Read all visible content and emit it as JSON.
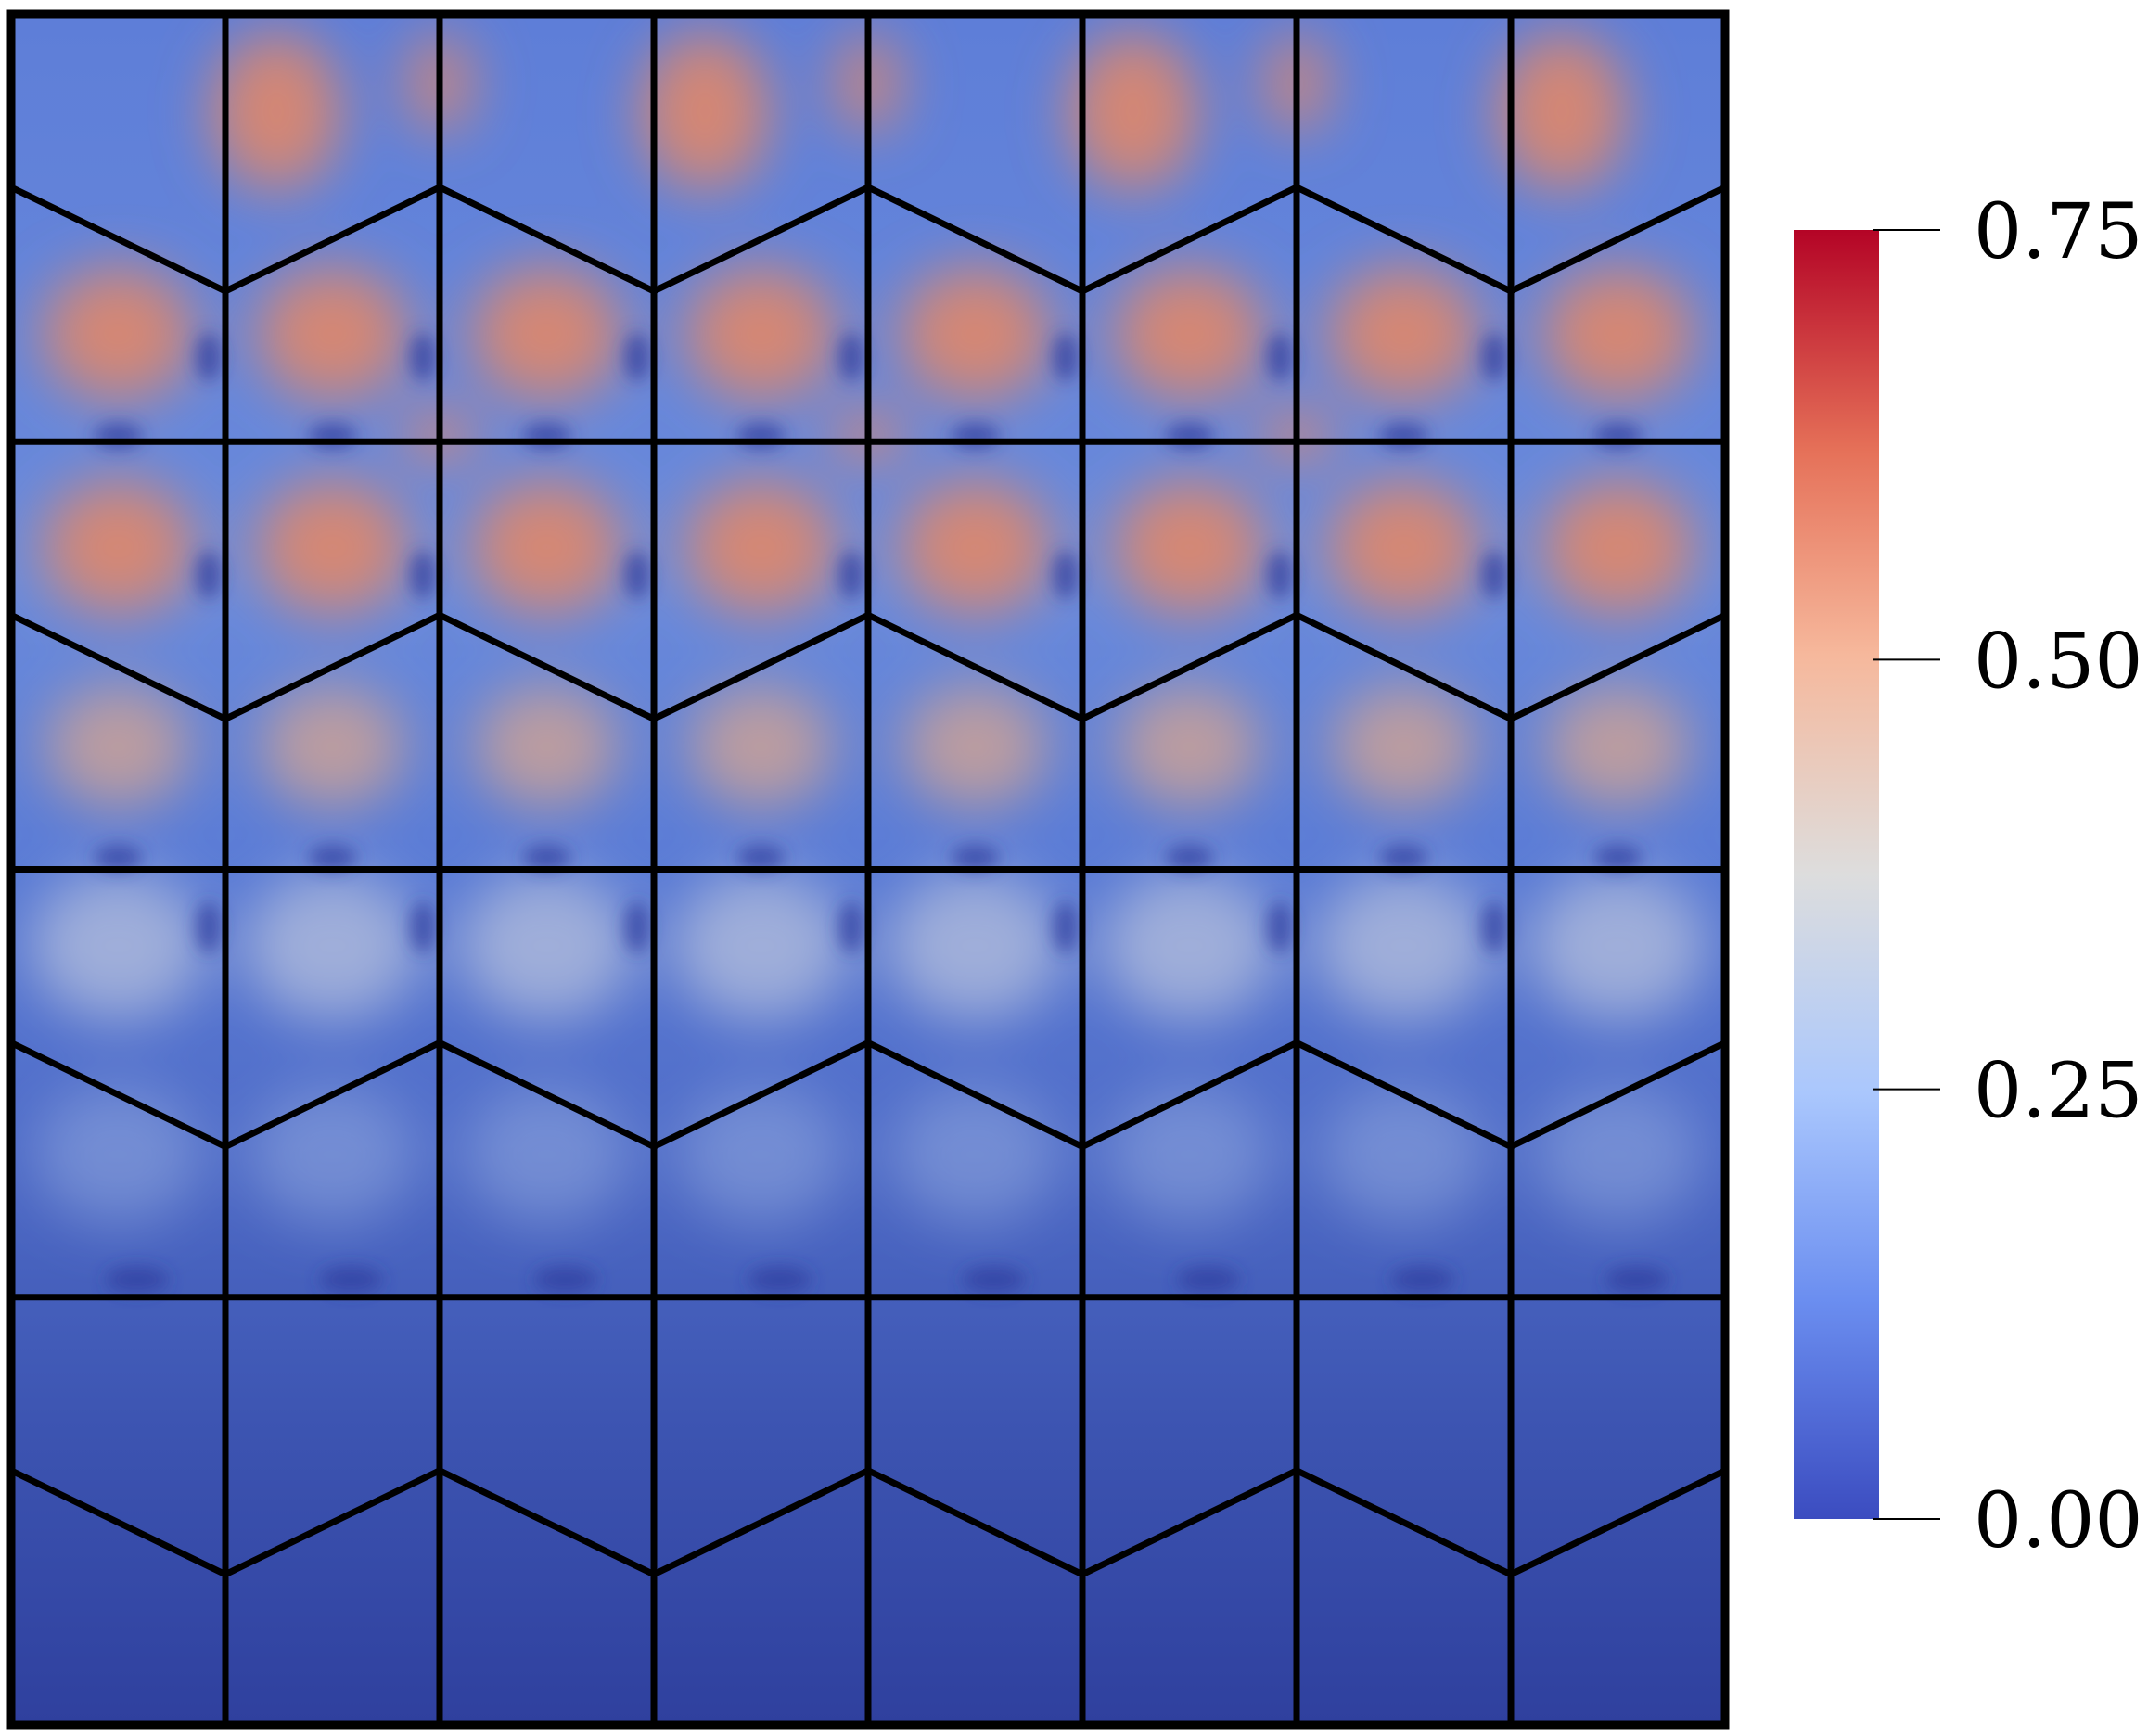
{
  "colorbar": {
    "min": 0.0,
    "max": 0.75,
    "ticks": [
      {
        "value": 0.75,
        "label": "0.75"
      },
      {
        "value": 0.5,
        "label": "0.50"
      },
      {
        "value": 0.25,
        "label": "0.25"
      },
      {
        "value": 0.0,
        "label": "0.00"
      }
    ],
    "colormap": [
      "#3b4cc0",
      "#6b8ef0",
      "#aac7fd",
      "#dddddd",
      "#f6b89c",
      "#e57058",
      "#b40426"
    ]
  },
  "mesh": {
    "columns": 8,
    "layers": 4,
    "line_color": "#000000"
  }
}
